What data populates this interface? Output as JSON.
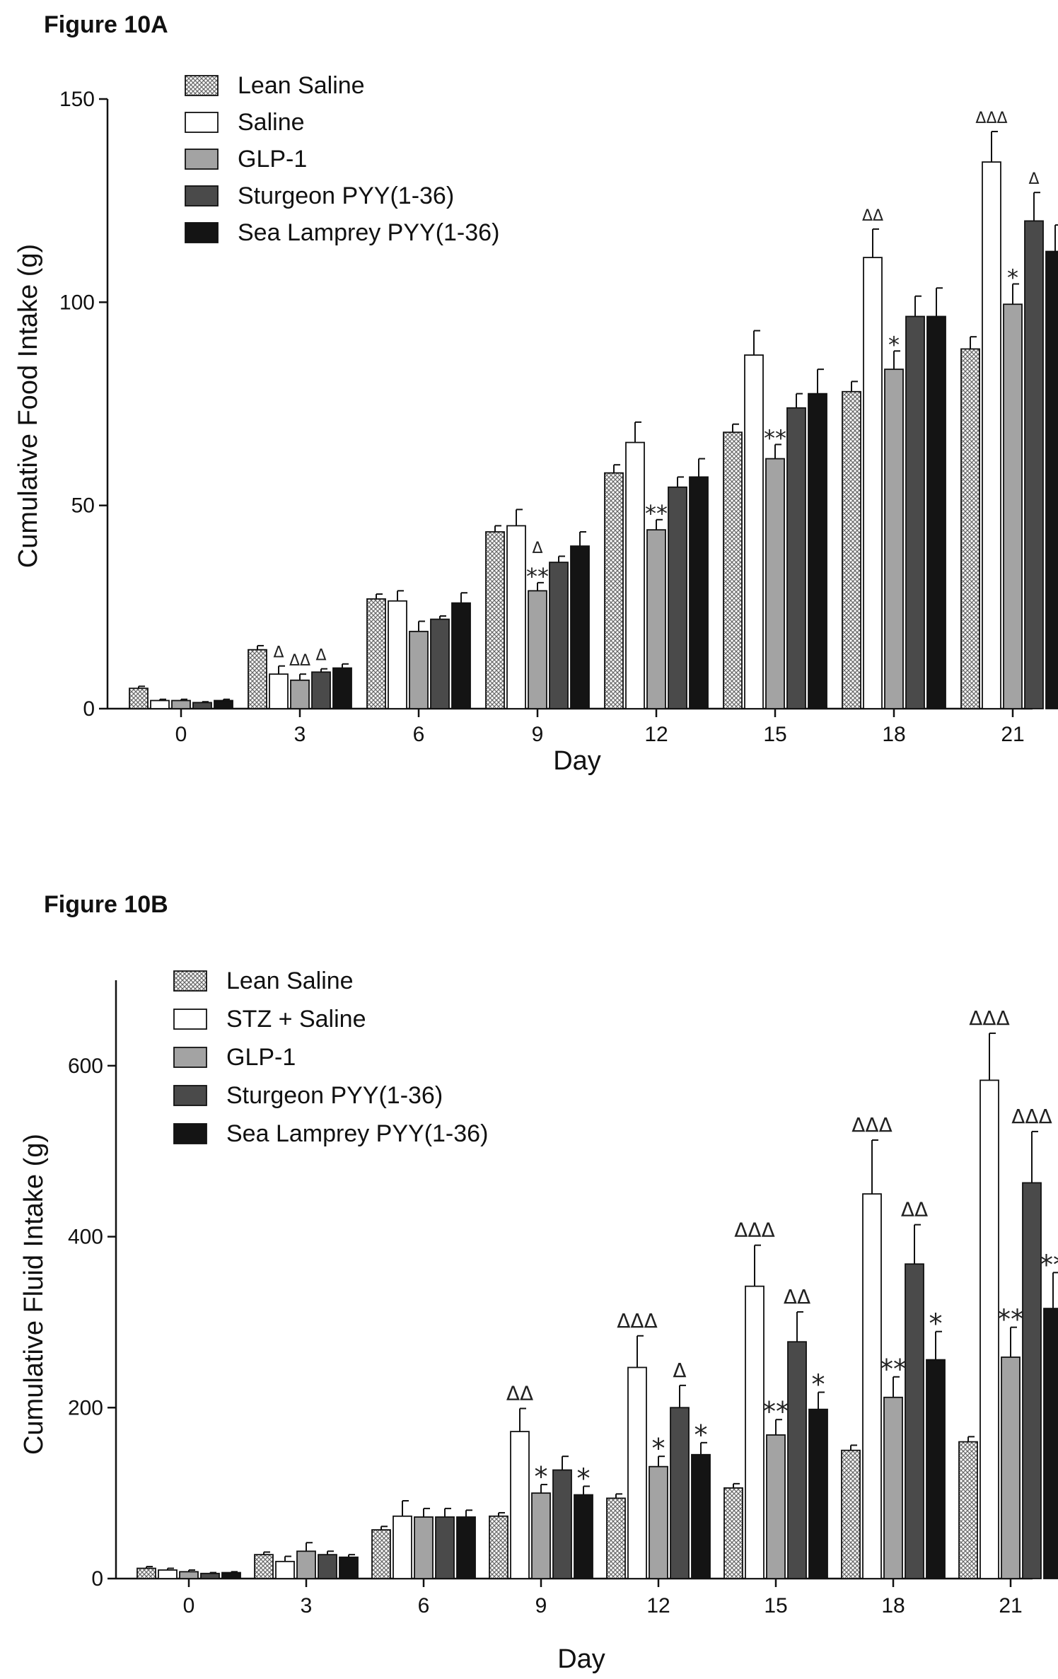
{
  "figures": [
    {
      "label": "Figure 10A"
    },
    {
      "label": "Figure 10B"
    }
  ],
  "colors": {
    "Lean Saline": "pattern",
    "Saline": "#ffffff",
    "GLP-1": "#a3a3a3",
    "Sturgeon PYY(1-36)": "#4a4a4a",
    "Sea Lamprey PYY(1-36)": "#141414"
  },
  "chart_data": [
    {
      "type": "bar",
      "title": "Figure 10A",
      "xlabel": "Day",
      "ylabel": "Cumulative Food Intake (g)",
      "ylim": [
        0,
        150
      ],
      "yticks": [
        0,
        50,
        100,
        150
      ],
      "categories": [
        "0",
        "3",
        "6",
        "9",
        "12",
        "15",
        "18",
        "21"
      ],
      "legend": "top-left",
      "series": [
        {
          "name": "Lean Saline",
          "values": [
            5,
            14.5,
            27,
            43.5,
            58,
            68,
            78,
            88.5
          ],
          "errors": [
            0.5,
            1,
            1.2,
            1.5,
            2,
            2,
            2.5,
            3
          ]
        },
        {
          "name": "Saline",
          "values": [
            2,
            8.5,
            26.5,
            45,
            65.5,
            87,
            111,
            134.5
          ],
          "errors": [
            0.3,
            2,
            2.5,
            4,
            5,
            6,
            7,
            7.5
          ]
        },
        {
          "name": "GLP-1",
          "values": [
            2,
            7,
            19,
            29,
            44,
            61.5,
            83.5,
            99.5
          ],
          "errors": [
            0.3,
            1.5,
            2.5,
            2,
            2.5,
            3.5,
            4.5,
            5
          ]
        },
        {
          "name": "Sturgeon PYY(1-36)",
          "values": [
            1.5,
            9,
            22,
            36,
            54.5,
            74,
            96.5,
            120
          ],
          "errors": [
            0.2,
            0.8,
            0.8,
            1.5,
            2.5,
            3.5,
            5,
            7
          ]
        },
        {
          "name": "Sea Lamprey PYY(1-36)",
          "values": [
            2,
            10,
            26,
            40,
            57,
            77.5,
            96.5,
            112.5
          ],
          "errors": [
            0.3,
            1,
            2.5,
            3.5,
            4.5,
            6,
            7,
            6.5
          ]
        }
      ],
      "annotations": [
        {
          "x": "3",
          "series": "Saline",
          "text": "Δ"
        },
        {
          "x": "3",
          "series": "GLP-1",
          "text": "ΔΔ"
        },
        {
          "x": "3",
          "series": "Sturgeon PYY(1-36)",
          "text": "Δ"
        },
        {
          "x": "9",
          "series": "GLP-1",
          "text": "**"
        },
        {
          "x": "9",
          "series": "GLP-1",
          "text": "Δ"
        },
        {
          "x": "12",
          "series": "GLP-1",
          "text": "**"
        },
        {
          "x": "15",
          "series": "GLP-1",
          "text": "**"
        },
        {
          "x": "18",
          "series": "Saline",
          "text": "ΔΔ"
        },
        {
          "x": "18",
          "series": "GLP-1",
          "text": "*"
        },
        {
          "x": "21",
          "series": "Saline",
          "text": "ΔΔΔ"
        },
        {
          "x": "21",
          "series": "GLP-1",
          "text": "*"
        },
        {
          "x": "21",
          "series": "Sturgeon PYY(1-36)",
          "text": "Δ"
        }
      ]
    },
    {
      "type": "bar",
      "title": "Figure 10B",
      "xlabel": "Day",
      "ylabel": "Cumulative Fluid Intake (g)",
      "ylim": [
        0,
        700
      ],
      "yticks": [
        0,
        200,
        400,
        600
      ],
      "categories": [
        "0",
        "3",
        "6",
        "9",
        "12",
        "15",
        "18",
        "21"
      ],
      "legend": "top-left",
      "series": [
        {
          "name": "Lean Saline",
          "values": [
            12,
            28,
            57,
            73,
            94,
            106,
            150,
            160
          ],
          "errors": [
            2,
            3,
            4,
            4,
            5,
            5,
            6,
            6
          ]
        },
        {
          "name": "STZ + Saline",
          "values": [
            10,
            20,
            73,
            172,
            247,
            342,
            450,
            583
          ],
          "errors": [
            2,
            6,
            18,
            27,
            37,
            48,
            63,
            55
          ]
        },
        {
          "name": "GLP-1",
          "values": [
            8,
            32,
            72,
            100,
            131,
            168,
            212,
            259
          ],
          "errors": [
            2,
            10,
            10,
            10,
            12,
            18,
            24,
            35
          ]
        },
        {
          "name": "Sturgeon PYY(1-36)",
          "values": [
            6,
            28,
            72,
            127,
            200,
            277,
            368,
            463
          ],
          "errors": [
            1,
            4,
            10,
            16,
            26,
            35,
            46,
            60
          ]
        },
        {
          "name": "Sea Lamprey PYY(1-36)",
          "values": [
            7,
            25,
            72,
            98,
            145,
            198,
            256,
            316
          ],
          "errors": [
            1,
            3,
            8,
            10,
            14,
            20,
            33,
            42
          ]
        }
      ],
      "annotations": [
        {
          "x": "9",
          "series": "STZ + Saline",
          "text": "ΔΔ"
        },
        {
          "x": "9",
          "series": "GLP-1",
          "text": "*"
        },
        {
          "x": "9",
          "series": "Sea Lamprey PYY(1-36)",
          "text": "*"
        },
        {
          "x": "12",
          "series": "STZ + Saline",
          "text": "ΔΔΔ"
        },
        {
          "x": "12",
          "series": "GLP-1",
          "text": "*"
        },
        {
          "x": "12",
          "series": "Sturgeon PYY(1-36)",
          "text": "Δ"
        },
        {
          "x": "12",
          "series": "Sea Lamprey PYY(1-36)",
          "text": "*"
        },
        {
          "x": "15",
          "series": "STZ + Saline",
          "text": "ΔΔΔ"
        },
        {
          "x": "15",
          "series": "GLP-1",
          "text": "**"
        },
        {
          "x": "15",
          "series": "Sturgeon PYY(1-36)",
          "text": "ΔΔ"
        },
        {
          "x": "15",
          "series": "Sea Lamprey PYY(1-36)",
          "text": "*"
        },
        {
          "x": "18",
          "series": "STZ + Saline",
          "text": "ΔΔΔ"
        },
        {
          "x": "18",
          "series": "GLP-1",
          "text": "**"
        },
        {
          "x": "18",
          "series": "Sturgeon PYY(1-36)",
          "text": "ΔΔ"
        },
        {
          "x": "18",
          "series": "Sea Lamprey PYY(1-36)",
          "text": "*"
        },
        {
          "x": "21",
          "series": "STZ + Saline",
          "text": "ΔΔΔ"
        },
        {
          "x": "21",
          "series": "GLP-1",
          "text": "**"
        },
        {
          "x": "21",
          "series": "Sturgeon PYY(1-36)",
          "text": "ΔΔΔ"
        },
        {
          "x": "21",
          "series": "Sea Lamprey PYY(1-36)",
          "text": "**"
        }
      ]
    }
  ]
}
